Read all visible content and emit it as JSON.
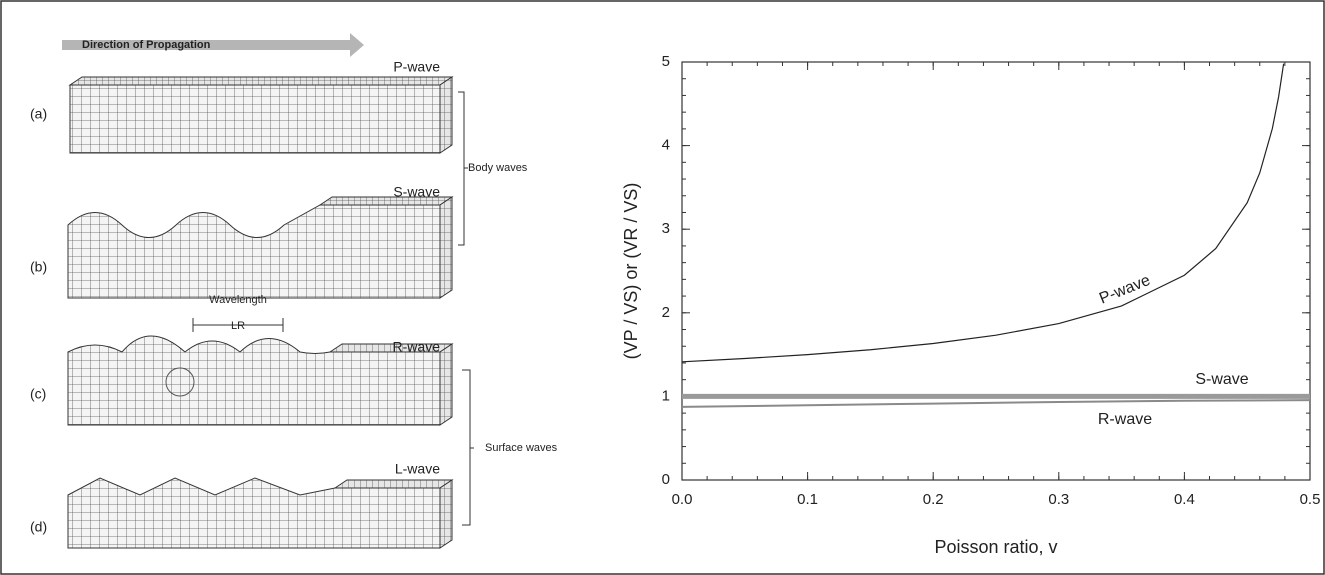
{
  "diagram": {
    "direction": "Direction of Propagation",
    "panels": [
      {
        "tag": "(a)",
        "wave": "P-wave"
      },
      {
        "tag": "(b)",
        "wave": "S-wave"
      },
      {
        "tag": "(c)",
        "wave": "R-wave"
      },
      {
        "tag": "(d)",
        "wave": "L-wave"
      }
    ],
    "body_label": "Body  waves",
    "surface_label": "Surface  waves",
    "wavelength": "Wavelength",
    "wavelength_symbol": "LR"
  },
  "chart_data": {
    "type": "line",
    "xlabel": "Poisson ratio, v",
    "ylabel": "(VP / VS)  or  (VR / VS)",
    "xlim": [
      0,
      0.5
    ],
    "ylim": [
      0,
      5
    ],
    "xticks": [
      {
        "value": 0,
        "label": "0.0"
      },
      0.1,
      0.2,
      0.3,
      0.4,
      0.5
    ],
    "yticks": [
      0,
      1,
      2,
      3,
      4,
      5
    ],
    "series": [
      {
        "name": "P-wave",
        "color": "#222222",
        "x": [
          0,
          0.05,
          0.1,
          0.15,
          0.2,
          0.25,
          0.3,
          0.35,
          0.4,
          0.425,
          0.45,
          0.46,
          0.47,
          0.475,
          0.479
        ],
        "values": [
          1.414,
          1.453,
          1.5,
          1.558,
          1.633,
          1.732,
          1.871,
          2.082,
          2.449,
          2.769,
          3.317,
          3.674,
          4.203,
          4.583,
          4.98
        ]
      },
      {
        "name": "S-wave",
        "color": "#9a9a9a",
        "x": [
          0,
          0.5
        ],
        "values": [
          1,
          1
        ]
      },
      {
        "name": "R-wave",
        "color": "#8a8a8a",
        "x": [
          0,
          0.1,
          0.2,
          0.3,
          0.4,
          0.5
        ],
        "values": [
          0.874,
          0.894,
          0.914,
          0.933,
          0.948,
          0.955
        ]
      }
    ]
  }
}
